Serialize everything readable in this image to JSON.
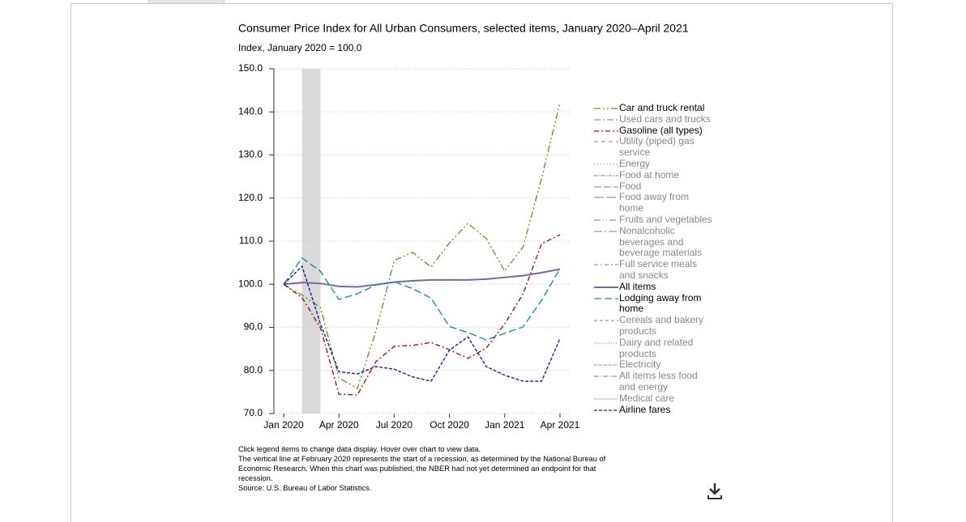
{
  "chart_data": {
    "type": "line",
    "title": "Consumer Price Index for All Urban Consumers, selected items, January 2020–April 2021",
    "subtitle": "Index, January 2020 = 100.0",
    "categories": [
      "Jan 2020",
      null,
      null,
      "Apr 2020",
      null,
      null,
      "Jul 2020",
      null,
      null,
      "Oct 2020",
      null,
      null,
      "Jan 2021",
      null,
      null,
      "Apr 2021"
    ],
    "ylim": [
      70,
      150
    ],
    "yticks": [
      {
        "value": 70,
        "label": "70.0"
      },
      {
        "value": 80,
        "label": "80.0"
      },
      {
        "value": 90,
        "label": "90.0"
      },
      {
        "value": 100,
        "label": "100.0"
      },
      {
        "value": 110,
        "label": "110.0"
      },
      {
        "value": 120,
        "label": "120.0"
      },
      {
        "value": 130,
        "label": "130.0"
      },
      {
        "value": 140,
        "label": "140.0"
      },
      {
        "value": 150,
        "label": "150.0"
      }
    ],
    "grid": true,
    "recession": {
      "from": 1,
      "to": 2,
      "color": "#d9d9d9"
    },
    "series": [
      {
        "name": "Car and truck rental",
        "color": "#5aa02c",
        "dash": "8 3 2 3 2 3",
        "visible": true,
        "values": [
          100,
          97.5,
          94.6,
          78.3,
          75.8,
          89,
          105.5,
          107.4,
          104,
          109.6,
          114.1,
          110.6,
          103.1,
          108.7,
          124.6,
          142.1
        ]
      },
      {
        "name": "Used cars and trucks",
        "color": "#999999",
        "dash": "8 3 2 3",
        "visible": false
      },
      {
        "name": "Gasoline (all types)",
        "color": "#a31515",
        "dash": "6 3 2 3",
        "visible": true,
        "values": [
          100,
          96.9,
          89.9,
          74.5,
          74.3,
          82,
          85.6,
          85.8,
          86.5,
          84.8,
          82.8,
          85.2,
          90.8,
          97.8,
          109.4,
          111.5
        ]
      },
      {
        "name": "Utility (piped) gas service",
        "color": "#999999",
        "dash": "5 4",
        "visible": false
      },
      {
        "name": "Energy",
        "color": "#999999",
        "dash": "1 3",
        "visible": false
      },
      {
        "name": "Food at home",
        "color": "#999999",
        "dash": "4 1 1 1 1 1",
        "visible": false
      },
      {
        "name": "Food",
        "color": "#999999",
        "dash": "9 3",
        "visible": false
      },
      {
        "name": "Food away from home",
        "color": "#999999",
        "dash": "12 3",
        "visible": false
      },
      {
        "name": "Fruits and vegetables",
        "color": "#999999",
        "dash": "8 3 1 3 1 3",
        "visible": false
      },
      {
        "name": "Nonalcoholic beverages and beverage materials",
        "color": "#999999",
        "dash": "10 3 2 3",
        "visible": false
      },
      {
        "name": "Full service meals and snacks",
        "color": "#999999",
        "dash": "5 3 2 3",
        "visible": false
      },
      {
        "name": "All items",
        "color": "#6e6e9e",
        "dash": "",
        "visible": true,
        "values": [
          100,
          100.4,
          100.2,
          99.5,
          99.4,
          99.9,
          100.5,
          100.8,
          101,
          101,
          101,
          101.2,
          101.6,
          102,
          102.7,
          103.5
        ]
      },
      {
        "name": "Lodging away from home",
        "color": "#1a8fb0",
        "dash": "9 4",
        "visible": true,
        "values": [
          100,
          106.1,
          103,
          96.5,
          97.8,
          99.8,
          100.6,
          99,
          96.8,
          90.2,
          88.8,
          87.1,
          88.6,
          90.1,
          96.3,
          103.6
        ]
      },
      {
        "name": "Cereals and bakery products",
        "color": "#999999",
        "dash": "4 3",
        "visible": false
      },
      {
        "name": "Dairy and related products",
        "color": "#999999",
        "dash": "1 2",
        "visible": false
      },
      {
        "name": "Electricity",
        "color": "#999999",
        "dash": "3 1 1 1",
        "visible": false
      },
      {
        "name": "All items less food and energy",
        "color": "#999999",
        "dash": "6 2 1 2",
        "visible": false
      },
      {
        "name": "Medical care",
        "color": "#999999",
        "dash": "1 1",
        "visible": false
      },
      {
        "name": "Airline fares",
        "color": "#1c1c9c",
        "dash": "4 2",
        "visible": true,
        "values": [
          100,
          104.2,
          90.8,
          79.7,
          79.2,
          80.9,
          80.3,
          78.5,
          77.5,
          84.7,
          87.8,
          80.9,
          78.9,
          77.5,
          77.5,
          87.4
        ]
      }
    ],
    "notes": [
      "Click legend items to change data display. Hover over chart to view data.",
      "The vertical line at February 2020 represents the start of a recession, as determined by the National Bureau of Economic Research. When this chart was published, the NBER had not yet determined an endpoint for that recession.",
      "Source: U.S. Bureau of Labor Statistics."
    ]
  }
}
